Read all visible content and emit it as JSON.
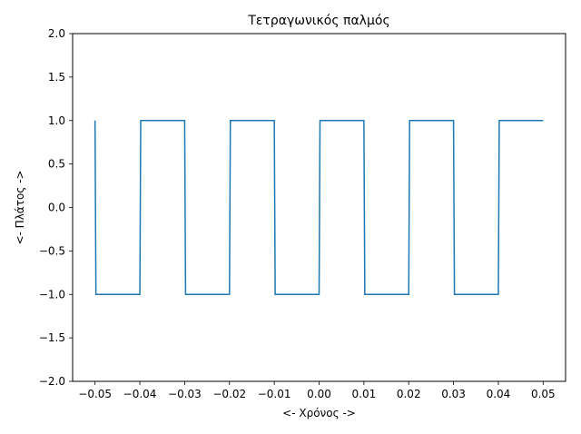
{
  "chart_data": {
    "type": "line",
    "title": "Τετραγωνικός παλμός",
    "xlabel": "<- Χρόνος ->",
    "ylabel": "<- Πλάτος ->",
    "xlim": [
      -0.055,
      0.055
    ],
    "ylim": [
      -2.0,
      2.0
    ],
    "x_ticks": [
      -0.05,
      -0.04,
      -0.03,
      -0.02,
      -0.01,
      0.0,
      0.01,
      0.02,
      0.03,
      0.04,
      0.05
    ],
    "x_tick_labels": [
      "−0.05",
      "−0.04",
      "−0.03",
      "−0.02",
      "−0.01",
      "0.00",
      "0.01",
      "0.02",
      "0.03",
      "0.04",
      "0.05"
    ],
    "y_ticks": [
      -2.0,
      -1.5,
      -1.0,
      -0.5,
      0.0,
      0.5,
      1.0,
      1.5,
      2.0
    ],
    "y_tick_labels": [
      "−2.0",
      "−1.5",
      "−1.0",
      "−0.5",
      "0.0",
      "0.5",
      "1.0",
      "1.5",
      "2.0"
    ],
    "grid": false,
    "series": [
      {
        "color": "#1f77b4",
        "x": [
          -0.05,
          -0.0498,
          -0.04,
          -0.0398,
          -0.03,
          -0.0298,
          -0.02,
          -0.0198,
          -0.01,
          -0.0098,
          0.0,
          0.0002,
          0.01,
          0.0102,
          0.02,
          0.0202,
          0.03,
          0.0302,
          0.04,
          0.0402,
          0.05
        ],
        "y": [
          1,
          -1,
          -1,
          1,
          1,
          -1,
          -1,
          1,
          1,
          -1,
          -1,
          1,
          1,
          -1,
          -1,
          1,
          1,
          -1,
          -1,
          1,
          1
        ]
      }
    ]
  }
}
